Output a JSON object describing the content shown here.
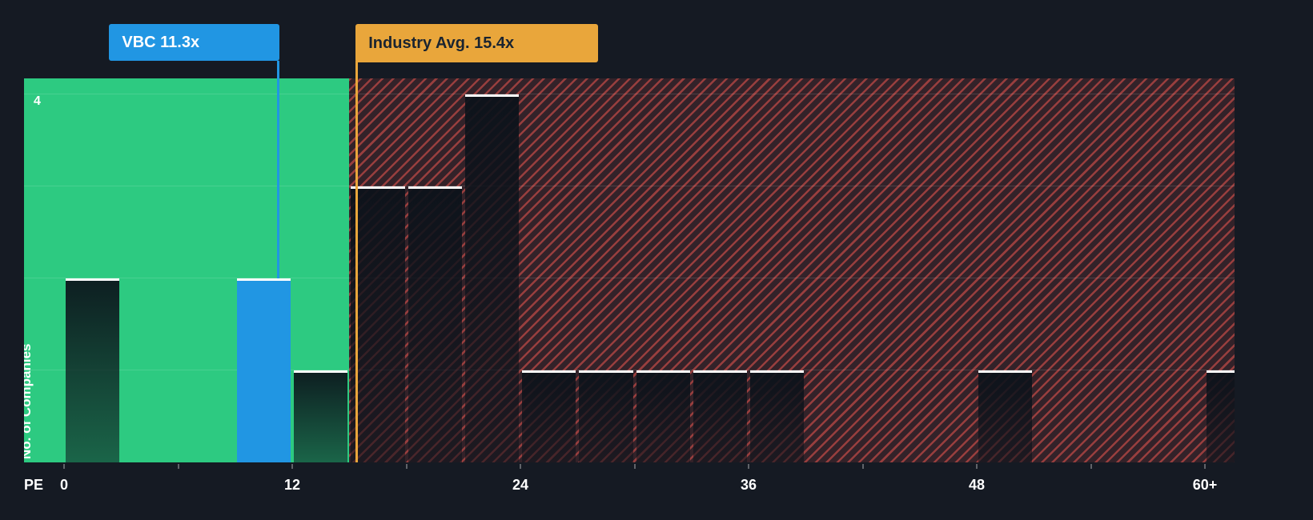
{
  "app": {
    "background_color": "#151a23"
  },
  "chart_data": {
    "type": "bar",
    "xlabel": "PE",
    "ylabel": "No. of Companies",
    "y_axis_max_label": "4",
    "ylim": [
      0,
      4.2
    ],
    "grid": true,
    "bucket_width": 3,
    "x_ticks": [
      {
        "value": 0,
        "label": "0"
      },
      {
        "value": 12,
        "label": "12"
      },
      {
        "value": 24,
        "label": "24"
      },
      {
        "value": 36,
        "label": "36"
      },
      {
        "value": 48,
        "label": "48"
      },
      {
        "value": 60,
        "label": "60+"
      }
    ],
    "buckets": [
      {
        "start": 0,
        "count": 2
      },
      {
        "start": 3,
        "count": 0
      },
      {
        "start": 6,
        "count": 0
      },
      {
        "start": 9,
        "count": 2,
        "highlight": true
      },
      {
        "start": 12,
        "count": 1
      },
      {
        "start": 15,
        "count": 3
      },
      {
        "start": 18,
        "count": 3
      },
      {
        "start": 21,
        "count": 4
      },
      {
        "start": 24,
        "count": 1
      },
      {
        "start": 27,
        "count": 1
      },
      {
        "start": 30,
        "count": 1
      },
      {
        "start": 33,
        "count": 1
      },
      {
        "start": 36,
        "count": 1
      },
      {
        "start": 39,
        "count": 0
      },
      {
        "start": 42,
        "count": 0
      },
      {
        "start": 45,
        "count": 0
      },
      {
        "start": 48,
        "count": 1
      },
      {
        "start": 51,
        "count": 0
      },
      {
        "start": 54,
        "count": 0
      },
      {
        "start": 57,
        "count": 0
      },
      {
        "start": 60,
        "count": 1
      }
    ],
    "markers": {
      "company": {
        "label": "VBC 11.3x",
        "value": 11.3,
        "color": "#2196e3"
      },
      "industry": {
        "label": "Industry Avg. 15.4x",
        "value": 15.4,
        "color": "#e9a63b"
      }
    },
    "regions": {
      "below_industry": {
        "end": 15,
        "color": "#2dca81"
      },
      "above_industry": {
        "hatch_color": "#e8554f"
      }
    }
  }
}
